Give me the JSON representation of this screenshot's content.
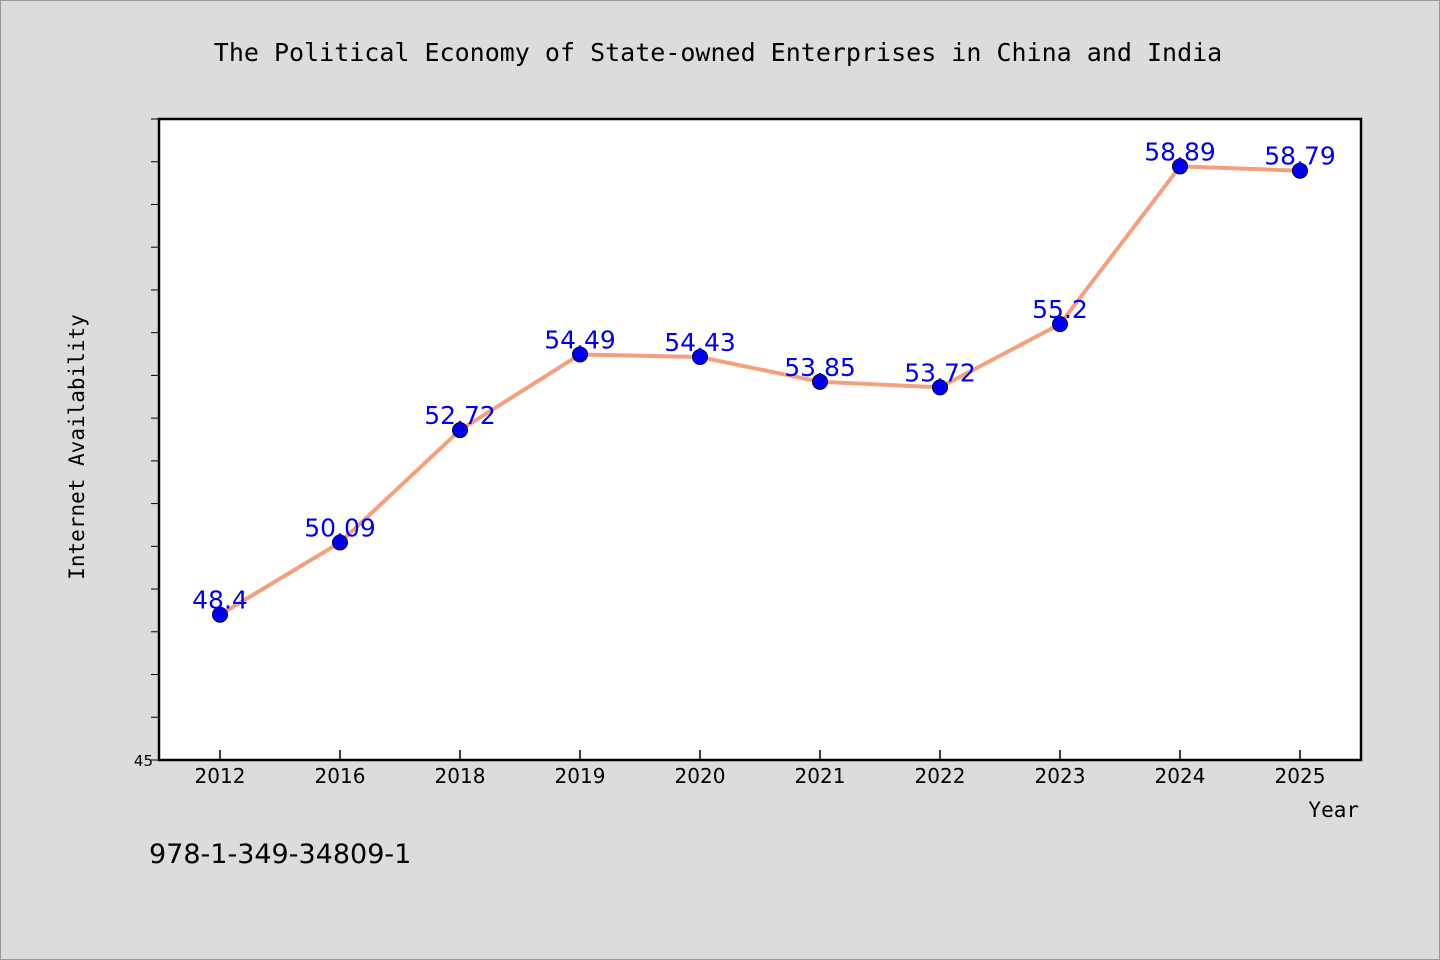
{
  "chart_data": {
    "type": "line",
    "title": "The Political Economy of State-owned Enterprises in China and India",
    "xlabel": "Year",
    "ylabel": "Internet Availability",
    "categories": [
      "2012",
      "2016",
      "2018",
      "2019",
      "2020",
      "2021",
      "2022",
      "2023",
      "2024",
      "2025"
    ],
    "series": [
      {
        "values": [
          48.4,
          50.09,
          52.72,
          54.49,
          54.43,
          53.85,
          53.72,
          55.2,
          58.89,
          58.79
        ],
        "data_labels": [
          "48.4",
          "50.09",
          "52.72",
          "54.49",
          "54.43",
          "53.85",
          "53.72",
          "55.2",
          "58.89",
          "58.79"
        ],
        "line_color": "#f4a07e",
        "marker_color": "#0000ee",
        "label_color": "#0000ee"
      }
    ],
    "ylim": [
      45,
      60
    ],
    "y_tick_labels": [
      "45"
    ],
    "grid": false,
    "legend": "none"
  },
  "footer_text": "978-1-349-34809-1"
}
